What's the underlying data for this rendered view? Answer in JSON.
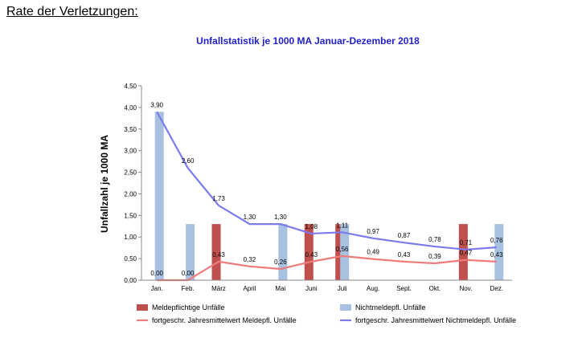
{
  "heading": "Rate der Verletzungen:",
  "chart_data": {
    "type": "bar+line",
    "title": "Unfallstatistik je 1000 MA  Januar-Dezember 2018",
    "ylabel": "Unfallzahl  je 1000 MA",
    "xlabel": "",
    "ylim": [
      0,
      4.5
    ],
    "ytick_step": 0.5,
    "categories": [
      "Jan.",
      "Feb.",
      "März",
      "April",
      "Mai",
      "Juni",
      "Juli",
      "Aug.",
      "Sept.",
      "Okt.",
      "Nov.",
      "Dez."
    ],
    "bar_series": [
      {
        "name": "Meldepflichtige Unfälle",
        "color": "#c0504d",
        "values": [
          0,
          0,
          1.3,
          0,
          0,
          1.3,
          1.3,
          0,
          0,
          0,
          1.3,
          0
        ]
      },
      {
        "name": "Nichtmeldepfl. Unfälle",
        "color": "#a9c1e0",
        "values": [
          3.9,
          1.3,
          0,
          0,
          1.3,
          0,
          1.3,
          0,
          0,
          0,
          0,
          1.3
        ]
      }
    ],
    "line_series": [
      {
        "name": "fortgeschr. Jahresmittelwert Meldepfl. Unfälle",
        "color": "#f07b7b",
        "values": [
          0.0,
          0.0,
          0.43,
          0.32,
          0.26,
          0.43,
          0.56,
          0.49,
          0.43,
          0.39,
          0.47,
          0.43
        ],
        "labels": [
          "0,00",
          "0,00",
          "0,43",
          "0,32",
          "0,26",
          "0,43",
          "0,56",
          "0,49",
          "0,43",
          "0,39",
          "0,47",
          "0,43"
        ]
      },
      {
        "name": "fortgeschr. Jahresmittelwert Nichtmeldepfl. Unfälle",
        "color": "#7b7bf0",
        "values": [
          3.9,
          2.6,
          1.73,
          1.3,
          1.3,
          1.08,
          1.11,
          0.97,
          0.87,
          0.78,
          0.71,
          0.76
        ],
        "labels": [
          "3,90",
          "2,60",
          "1,73",
          "1,30",
          "1,30",
          "1,08",
          "1,11",
          "0,97",
          "0,87",
          "0,78",
          "0,71",
          "0,76"
        ]
      }
    ],
    "grid": false,
    "legend_position": "bottom"
  }
}
